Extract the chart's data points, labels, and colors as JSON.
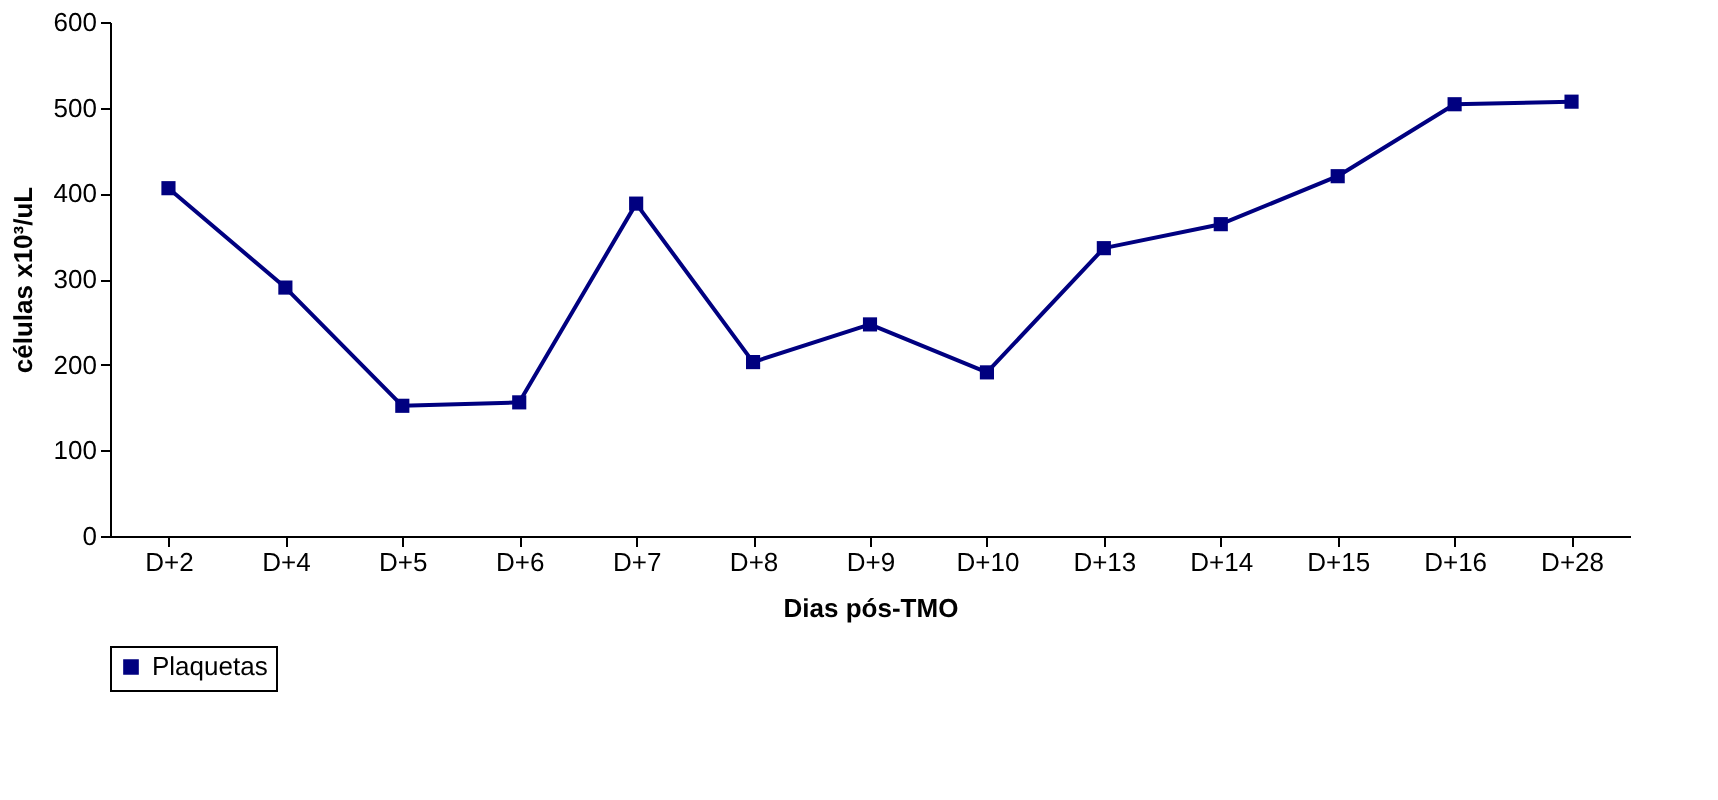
{
  "chart_data": {
    "type": "line",
    "xlabel": "Dias pós-TMO",
    "ylabel": "células x10³/uL",
    "categories": [
      "D+2",
      "D+4",
      "D+5",
      "D+6",
      "D+7",
      "D+8",
      "D+9",
      "D+10",
      "D+13",
      "D+14",
      "D+15",
      "D+16",
      "D+28"
    ],
    "series": [
      {
        "name": "Plaquetas",
        "color": "#000080",
        "values": [
          406,
          290,
          152,
          156,
          388,
          203,
          247,
          191,
          336,
          364,
          420,
          504,
          507
        ]
      }
    ],
    "ylim": [
      0,
      600
    ],
    "yticks": [
      0,
      100,
      200,
      300,
      400,
      500,
      600
    ],
    "marker": "square",
    "line_style": "solid",
    "grid": false,
    "legend": "bottom"
  }
}
